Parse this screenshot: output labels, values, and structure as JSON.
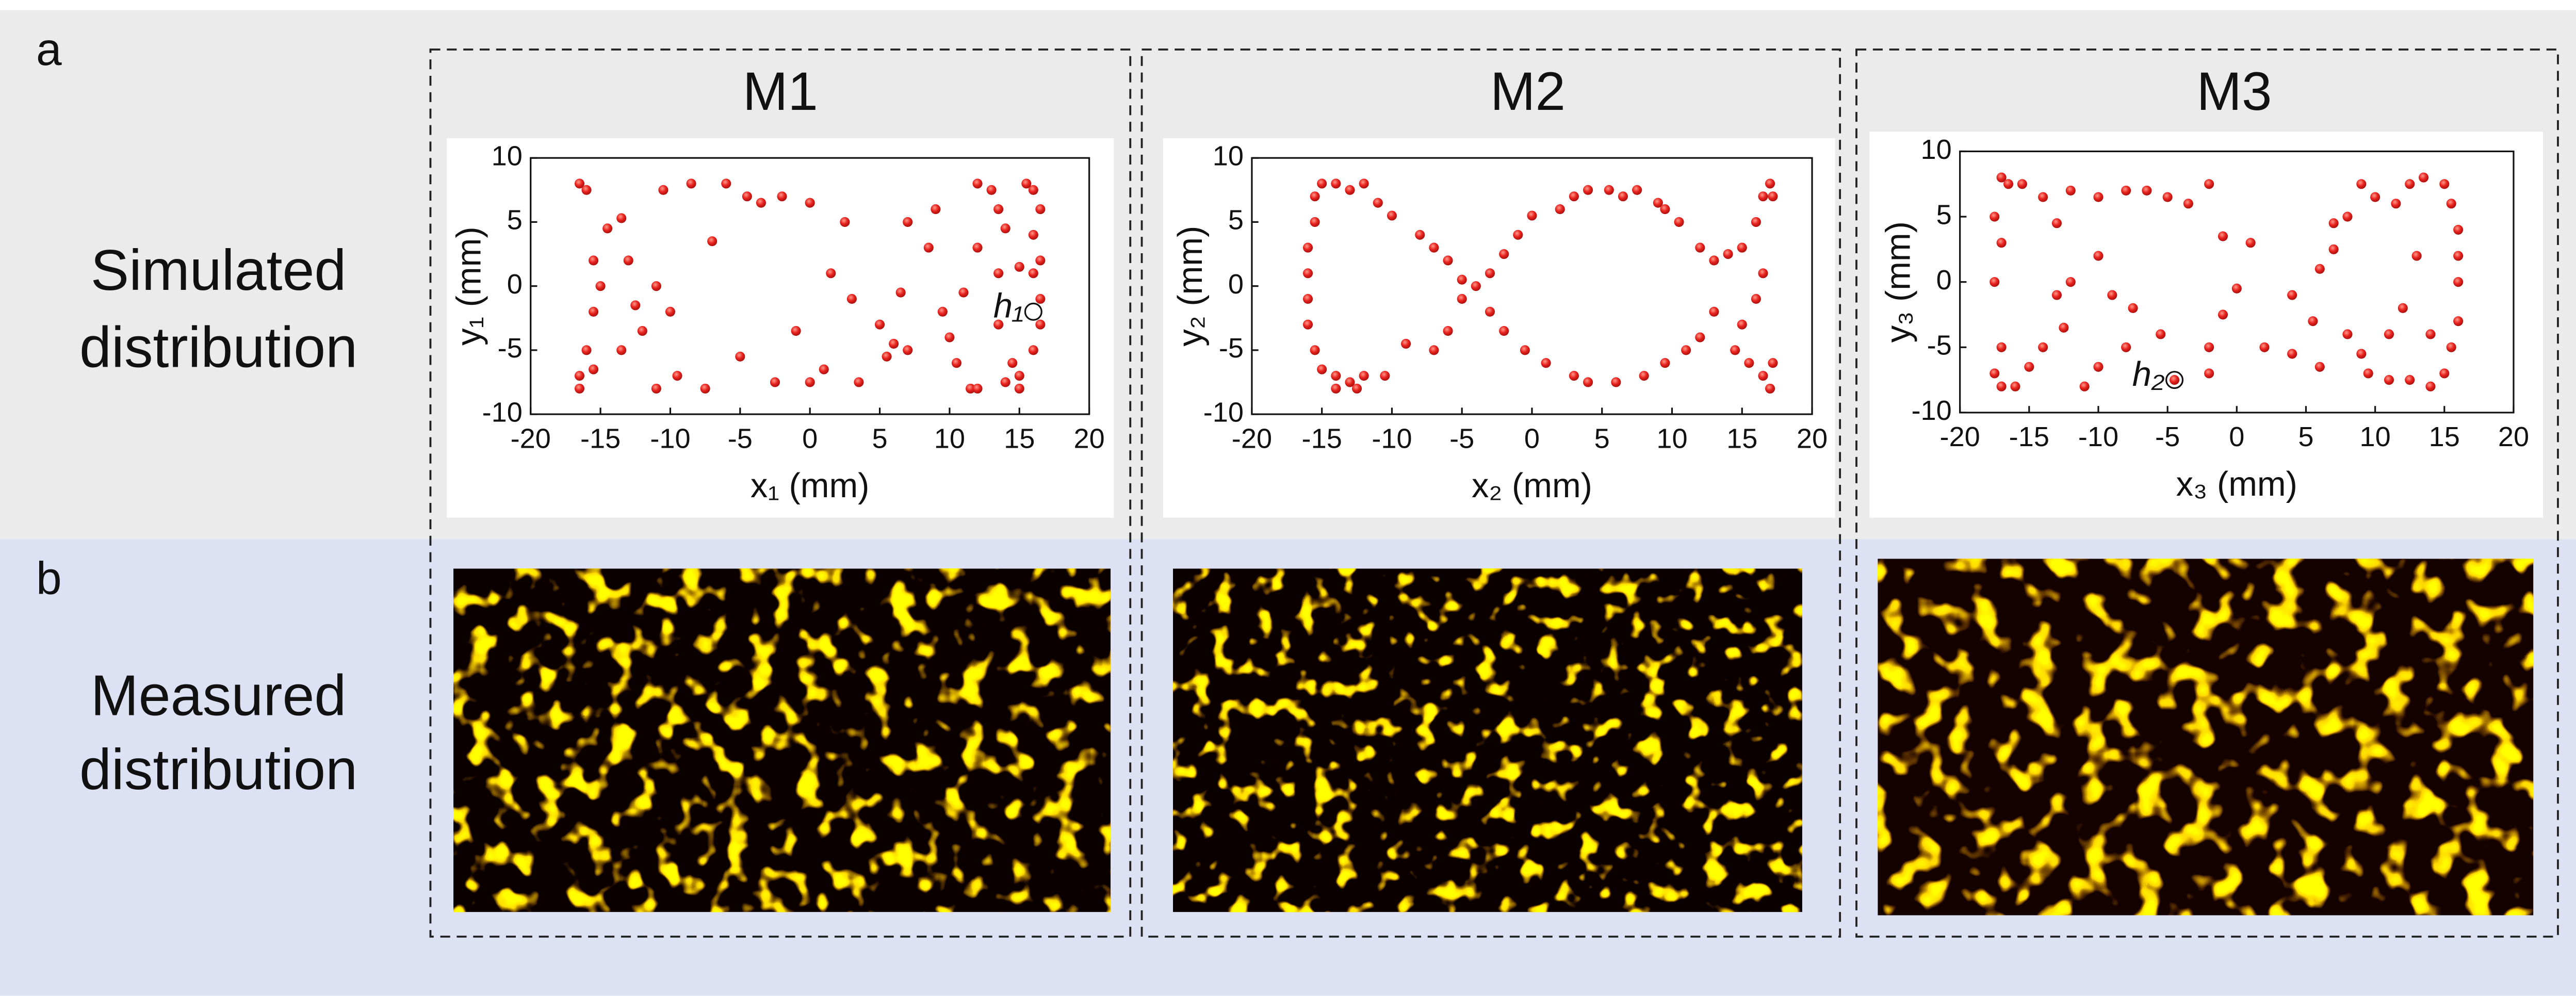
{
  "panels": {
    "a": "a",
    "b": "b"
  },
  "rows": [
    [
      "Simulated",
      "distribution"
    ],
    [
      "Measured",
      "distribution"
    ]
  ],
  "chart_data": [
    {
      "type": "scatter",
      "title": "M1",
      "xlabel": "x₁ (mm)",
      "ylabel": "y₁ (mm)",
      "color": "#e8231f",
      "xlim": [
        -20,
        20
      ],
      "ylim": [
        -10,
        10
      ],
      "xticks": [
        -20,
        -15,
        -10,
        -5,
        0,
        5,
        10,
        15,
        20
      ],
      "yticks": [
        -10,
        -5,
        0,
        5,
        10
      ],
      "annotation": {
        "text": "h₁",
        "x": 16,
        "y": -2
      },
      "series": [
        {
          "name": "M1",
          "x": [
            -16.5,
            -16,
            -14.5,
            -13.5,
            -15.5,
            -15,
            -15.5,
            -16,
            -16.5,
            -16.5,
            -15.5,
            -13.5,
            -12,
            -12.5,
            -13,
            -11,
            -10,
            -9.5,
            -11,
            -7.5,
            -10.5,
            -8.5,
            -7,
            -6,
            -4.5,
            -3.5,
            -2,
            -5,
            -2.5,
            0,
            -1,
            0,
            1,
            3.5,
            1.5,
            2.5,
            3,
            5,
            6,
            6.5,
            5.5,
            7,
            7,
            8.5,
            9.5,
            10,
            10.5,
            11.5,
            9,
            11,
            12,
            13,
            12,
            13.5,
            13.5,
            14.5,
            14,
            15,
            15,
            16,
            16.5,
            16.5,
            16,
            16.5,
            16,
            16.5,
            16,
            15.5,
            14,
            15,
            13.5,
            12
          ],
          "values": [
            8,
            7.5,
            4.5,
            5.3,
            2,
            0,
            -2,
            -5,
            -7,
            -8,
            -6.5,
            -5,
            -3.5,
            -1.5,
            2,
            0,
            -2,
            -7,
            -8,
            -8,
            7.5,
            8,
            3.5,
            8,
            7,
            6.5,
            7,
            -5.5,
            -7.5,
            -7.5,
            -3.5,
            6.5,
            -6.5,
            -7.5,
            1,
            5,
            -1,
            -3,
            -4.5,
            -0.5,
            -5.5,
            -5,
            5,
            3,
            -2,
            -4,
            -6,
            -8,
            6,
            -0.5,
            8,
            7.5,
            3,
            6,
            -3,
            -6,
            -7.5,
            -8,
            -7,
            -5,
            -3,
            -1,
            1,
            2,
            4,
            6,
            7.5,
            8,
            4.5,
            1.5,
            1,
            -8
          ]
        }
      ]
    },
    {
      "type": "scatter",
      "title": "M2",
      "xlabel": "x₂ (mm)",
      "ylabel": "y₂ (mm)",
      "color": "#e8231f",
      "xlim": [
        -20,
        20
      ],
      "ylim": [
        -10,
        10
      ],
      "xticks": [
        -20,
        -15,
        -10,
        -5,
        0,
        5,
        10,
        15,
        20
      ],
      "yticks": [
        -10,
        -5,
        0,
        5,
        10
      ],
      "series": [
        {
          "name": "M2",
          "x": [
            -15.5,
            -15,
            -14,
            -13,
            -12,
            -11,
            -10,
            -8,
            -7,
            -6,
            -5,
            -4,
            -3,
            -2,
            -1,
            0,
            2,
            3,
            4,
            5.5,
            6.5,
            7.5,
            9,
            9.5,
            10.5,
            12,
            13,
            14,
            15,
            16,
            16.5,
            17,
            17.2,
            16.5,
            16,
            15,
            14.5,
            15.5,
            16.5,
            17,
            17.2,
            13,
            12,
            11,
            9.5,
            8,
            6,
            4,
            3,
            1,
            -0.5,
            -2,
            -3,
            -5,
            -6,
            -7,
            -9,
            -10.5,
            -12,
            -13,
            -14,
            -15,
            -15.5,
            -16,
            -16,
            -16,
            -16,
            -15.5,
            -14,
            -12.5
          ],
          "values": [
            7,
            8,
            8,
            7.5,
            8,
            6.5,
            5.5,
            4,
            3,
            2,
            0.5,
            0,
            1,
            2.5,
            4,
            5.5,
            6,
            7,
            7.5,
            7.5,
            7,
            7.5,
            6.5,
            6,
            5,
            3,
            2,
            2.5,
            3,
            5,
            7,
            8,
            7,
            1,
            -1,
            -3,
            -5,
            -6,
            -7,
            -8,
            -6,
            -2,
            -4,
            -5,
            -6,
            -7,
            -7.5,
            -7.5,
            -7,
            -6,
            -5,
            -3.5,
            -2,
            -1,
            -3.5,
            -5,
            -4.5,
            -7,
            -7,
            -7.5,
            -7,
            -6.5,
            -5,
            -3,
            -1,
            1,
            3,
            5,
            -8,
            -8
          ]
        }
      ]
    },
    {
      "type": "scatter",
      "title": "M3",
      "xlabel": "x₃ (mm)",
      "ylabel": "y₃ (mm)",
      "color": "#e8231f",
      "xlim": [
        -20,
        20
      ],
      "ylim": [
        -10,
        10
      ],
      "xticks": [
        -20,
        -15,
        -10,
        -5,
        0,
        5,
        10,
        15,
        20
      ],
      "yticks": [
        -10,
        -5,
        0,
        5,
        10
      ],
      "annotation": {
        "text": "h₂",
        "x": -4.5,
        "y": -7.5
      },
      "series": [
        {
          "name": "M3",
          "x": [
            -17,
            -16.5,
            -15.5,
            -14,
            -13,
            -12,
            -10,
            -8,
            -6.5,
            -5,
            -3.5,
            -2,
            -1,
            1,
            0,
            -1,
            -2,
            -2,
            -5.5,
            -7.5,
            -8,
            -10,
            -11,
            -9,
            -10,
            -12,
            -13,
            -12.5,
            -14,
            -15,
            -17,
            -17.5,
            -17,
            -16,
            -17.5,
            -17,
            -17.5,
            2,
            4,
            5.5,
            4,
            6,
            7,
            6,
            8,
            9,
            9.5,
            11,
            12.5,
            14,
            15,
            15.5,
            16,
            16,
            16,
            16,
            15.5,
            15,
            13.5,
            12.5,
            11.5,
            10,
            9,
            8,
            7,
            13,
            12,
            14,
            11,
            -4.5
          ],
          "values": [
            8,
            7.5,
            7.5,
            6.5,
            4.5,
            7,
            6.5,
            7,
            7,
            6.5,
            6,
            7.5,
            3.5,
            3,
            -0.5,
            -2.5,
            -5,
            -7,
            -4,
            -2,
            -5,
            -6.5,
            -8,
            -1,
            2,
            0,
            -1,
            -3.5,
            -5,
            -6.5,
            -5,
            -7,
            -8,
            -8,
            0,
            3,
            5,
            -5,
            -5.5,
            -3,
            -1,
            1,
            2.5,
            -6.5,
            -4,
            -5.5,
            -7,
            -7.5,
            -7.5,
            -8,
            -7,
            -5,
            -3,
            0,
            2,
            4,
            6,
            7.5,
            8,
            7.5,
            6,
            6.5,
            7.5,
            5,
            4.5,
            2,
            -2,
            -4,
            -4,
            -7.5
          ]
        }
      ]
    }
  ]
}
